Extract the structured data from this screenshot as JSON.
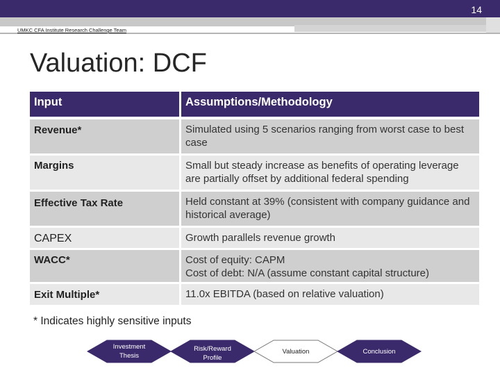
{
  "header": {
    "page_number": "14",
    "team": "UMKC CFA Institute Research Challenge Team"
  },
  "title": "Valuation: DCF",
  "table": {
    "headers": [
      "Input",
      "Assumptions/Methodology"
    ],
    "rows": [
      {
        "input": "Revenue*",
        "method": "Simulated using 5 scenarios ranging from worst case to best case"
      },
      {
        "input": "Margins",
        "method": "Small but steady increase as benefits of operating leverage are partially offset by additional federal spending"
      },
      {
        "input": "Effective Tax Rate",
        "method": "Held constant at 39%  (consistent with company guidance and historical average)"
      },
      {
        "input": "CAPEX",
        "method": "Growth parallels revenue  growth"
      },
      {
        "input": "WACC*",
        "method_lines": [
          "Cost of equity: CAPM",
          "Cost of debt: N/A (assume constant capital structure)"
        ]
      },
      {
        "input": "Exit Multiple*",
        "method": "11.0x EBITDA (based on relative valuation)"
      }
    ]
  },
  "note": "* Indicates highly sensitive inputs",
  "nav": {
    "items": [
      {
        "label_lines": [
          "Investment",
          "Thesis"
        ],
        "active": true
      },
      {
        "label_lines": [
          "Risk/Reward",
          "Profile"
        ],
        "active": true
      },
      {
        "label_lines": [
          "Valuation"
        ],
        "active": false
      },
      {
        "label_lines": [
          "Conclusion"
        ],
        "active": true
      }
    ],
    "colors": {
      "active": "#3b2a6b",
      "inactive": "#ffffff",
      "active_text": "#ffffff",
      "inactive_text": "#222222"
    }
  }
}
